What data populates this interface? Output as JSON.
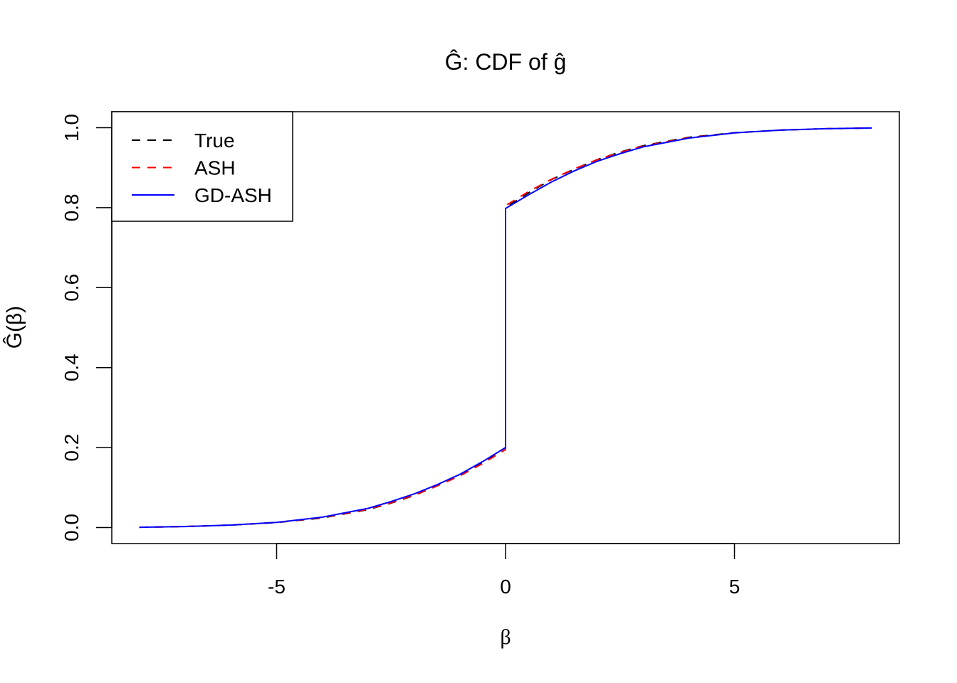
{
  "chart_data": {
    "type": "line",
    "title": "Ĝ: CDF of ĝ",
    "xlabel": "β",
    "ylabel": "Ĝ(β)",
    "xlim": [
      -8.6,
      8.6
    ],
    "ylim": [
      -0.04,
      1.04
    ],
    "xticks": [
      -5,
      0,
      5
    ],
    "xtick_labels": [
      "-5",
      "0",
      "5"
    ],
    "yticks": [
      0,
      0.2,
      0.4,
      0.6,
      0.8,
      1.0
    ],
    "ytick_labels": [
      "0.0",
      "0.2",
      "0.4",
      "0.6",
      "0.8",
      "1.0"
    ],
    "grid": false,
    "legend_position": "top-left",
    "x": [
      -8,
      -7,
      -6,
      -5,
      -4,
      -3,
      -2.5,
      -2,
      -1.5,
      -1,
      -0.5,
      0,
      0,
      0.5,
      1,
      1.5,
      2,
      2.5,
      3,
      4,
      5,
      6,
      7,
      8
    ],
    "series": [
      {
        "name": "True",
        "color": "#000000",
        "dash": "dashed",
        "values": [
          0.0008,
          0.0025,
          0.006,
          0.0125,
          0.024,
          0.045,
          0.061,
          0.08,
          0.104,
          0.13,
          0.163,
          0.2,
          0.8,
          0.837,
          0.87,
          0.896,
          0.92,
          0.939,
          0.955,
          0.976,
          0.9875,
          0.994,
          0.9975,
          0.9992
        ]
      },
      {
        "name": "ASH",
        "color": "#ff0000",
        "dash": "dashed",
        "values": [
          0.0008,
          0.0026,
          0.0062,
          0.0128,
          0.025,
          0.046,
          0.062,
          0.081,
          0.104,
          0.129,
          0.16,
          0.195,
          0.805,
          0.84,
          0.871,
          0.897,
          0.92,
          0.938,
          0.954,
          0.975,
          0.987,
          0.994,
          0.9975,
          0.9992
        ]
      },
      {
        "name": "GD-ASH",
        "color": "#0000ff",
        "dash": "solid",
        "values": [
          0.0008,
          0.0026,
          0.0063,
          0.013,
          0.026,
          0.048,
          0.065,
          0.084,
          0.107,
          0.133,
          0.165,
          0.2,
          0.798,
          0.832,
          0.864,
          0.892,
          0.916,
          0.935,
          0.952,
          0.974,
          0.987,
          0.994,
          0.9975,
          0.9992
        ]
      }
    ]
  }
}
